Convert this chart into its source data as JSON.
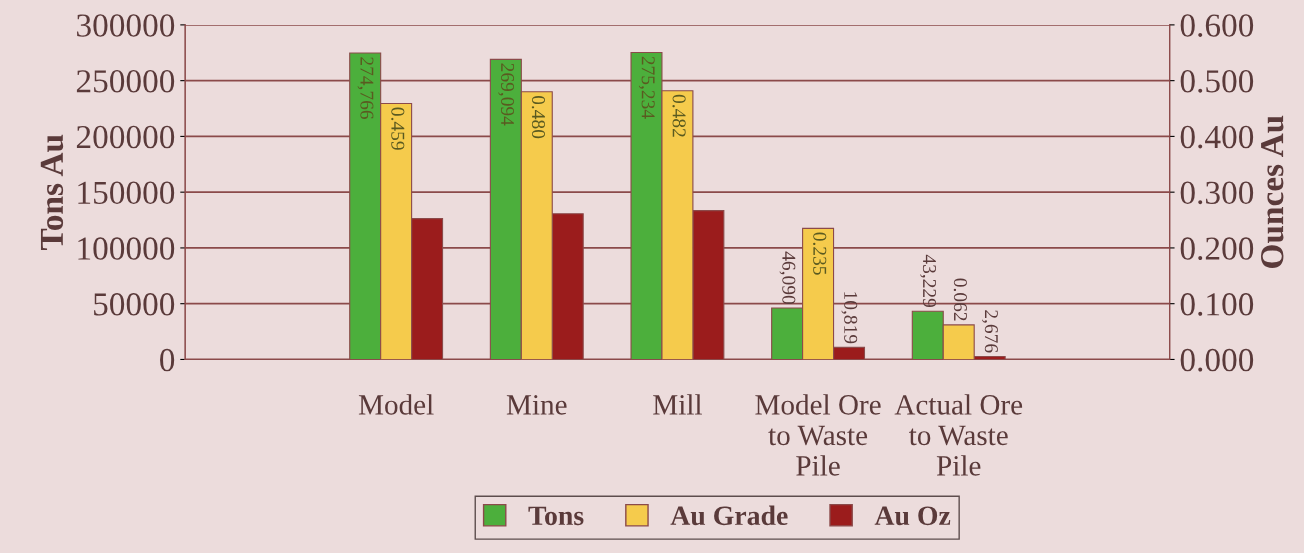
{
  "chart_data": {
    "type": "bar",
    "ylabel": "Tons Au",
    "y2label": "Ounces Au",
    "categories": [
      null,
      "Model",
      "Mine",
      "Mill",
      "Model Ore\nto Waste\nPile",
      "Actual Ore\nto Waste\nPile",
      null
    ],
    "series": [
      {
        "name": "Tons",
        "color": "#4caf3c",
        "values": [
          null,
          274766,
          269094,
          275234,
          46090,
          43229,
          null
        ],
        "value_labels": [
          null,
          "274,766",
          "269,094",
          "275,234",
          "46,090",
          "43,229",
          null
        ]
      },
      {
        "name": "Au Grade",
        "color": "#f5cb4c",
        "axis": "y2",
        "values": [
          null,
          0.459,
          0.48,
          0.482,
          0.235,
          0.062,
          null
        ],
        "value_labels": [
          null,
          "0.459",
          "0.480",
          "0.482",
          "0.235",
          "0.062",
          null
        ]
      },
      {
        "name": "Au Oz",
        "color": "#9b1c1c",
        "values": [
          null,
          126300,
          130700,
          133400,
          10819,
          2676,
          null
        ],
        "value_labels": [
          null,
          null,
          null,
          null,
          "10,819",
          "2,676",
          null
        ]
      }
    ],
    "ylim": [
      0,
      300000
    ],
    "yticks": [
      0,
      50000,
      100000,
      150000,
      200000,
      250000,
      300000
    ],
    "y2lim": [
      0,
      0.6
    ],
    "y2ticks": [
      {
        "value": 0,
        "label": "0.000"
      },
      {
        "value": 0.1,
        "label": "0.100"
      },
      {
        "value": 0.2,
        "label": "0.200"
      },
      {
        "value": 0.3,
        "label": "0.300"
      },
      {
        "value": 0.4,
        "label": "0.400"
      },
      {
        "value": 0.5,
        "label": "0.500"
      },
      {
        "value": 0.6,
        "label": "0.600"
      }
    ],
    "grid": "y",
    "legend": "bottom"
  }
}
